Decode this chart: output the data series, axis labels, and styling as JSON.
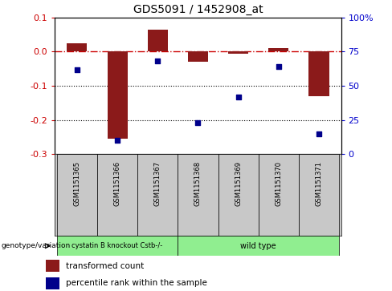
{
  "title": "GDS5091 / 1452908_at",
  "samples": [
    "GSM1151365",
    "GSM1151366",
    "GSM1151367",
    "GSM1151368",
    "GSM1151369",
    "GSM1151370",
    "GSM1151371"
  ],
  "transformed_count": [
    0.025,
    -0.255,
    0.065,
    -0.03,
    -0.005,
    0.01,
    -0.13
  ],
  "percentile_rank": [
    62,
    10,
    68,
    23,
    42,
    64,
    15
  ],
  "ylim_left": [
    -0.3,
    0.1
  ],
  "ylim_right": [
    0,
    100
  ],
  "yticks_left": [
    -0.3,
    -0.2,
    -0.1,
    0.0,
    0.1
  ],
  "yticks_right": [
    0,
    25,
    50,
    75,
    100
  ],
  "bar_color": "#8B1A1A",
  "dot_color": "#00008B",
  "bar_width": 0.5,
  "hline_color": "#CC0000",
  "dotted_line_color": "#000000",
  "bg_color": "#FFFFFF",
  "tick_label_area_color": "#C8C8C8",
  "green_color": "#90EE90",
  "group1_label": "cystatin B knockout Cstb-/-",
  "group2_label": "wild type",
  "group1_samples": [
    0,
    1,
    2
  ],
  "group2_samples": [
    3,
    4,
    5,
    6
  ],
  "genotype_label": "genotype/variation",
  "legend_items": [
    "transformed count",
    "percentile rank within the sample"
  ],
  "title_fontsize": 10
}
